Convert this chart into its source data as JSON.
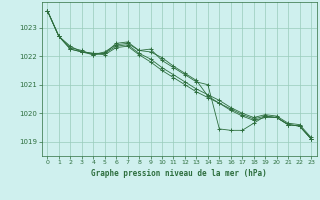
{
  "title": "Graphe pression niveau de la mer (hPa)",
  "background_color": "#cff0ee",
  "plot_bg_color": "#cff0ee",
  "grid_color": "#99ccbb",
  "line_color": "#2d6e3e",
  "ylim": [
    1018.5,
    1023.9
  ],
  "xlim": [
    -0.5,
    23.5
  ],
  "yticks": [
    1019,
    1020,
    1021,
    1022,
    1023
  ],
  "xticks": [
    0,
    1,
    2,
    3,
    4,
    5,
    6,
    7,
    8,
    9,
    10,
    11,
    12,
    13,
    14,
    15,
    16,
    17,
    18,
    19,
    20,
    21,
    22,
    23
  ],
  "series": [
    [
      1023.6,
      1022.7,
      1022.35,
      1022.15,
      1022.05,
      1022.1,
      1022.45,
      1022.5,
      1022.2,
      1022.25,
      1021.85,
      1021.6,
      1021.35,
      1021.1,
      1021.0,
      1019.45,
      1019.4,
      1019.4,
      1019.65,
      1019.9,
      1019.85,
      1019.6,
      1019.55,
      1019.1
    ],
    [
      1023.6,
      1022.7,
      1022.3,
      1022.2,
      1022.05,
      1022.15,
      1022.4,
      1022.45,
      1022.2,
      1022.15,
      1021.95,
      1021.65,
      1021.4,
      1021.15,
      1020.6,
      1020.35,
      1020.15,
      1019.95,
      1019.8,
      1019.9,
      1019.85,
      1019.6,
      1019.55,
      1019.1
    ],
    [
      1023.6,
      1022.7,
      1022.25,
      1022.15,
      1022.1,
      1022.1,
      1022.35,
      1022.4,
      1022.1,
      1021.9,
      1021.6,
      1021.35,
      1021.1,
      1020.85,
      1020.65,
      1020.45,
      1020.2,
      1020.0,
      1019.85,
      1019.95,
      1019.9,
      1019.65,
      1019.6,
      1019.15
    ],
    [
      1023.6,
      1022.7,
      1022.25,
      1022.15,
      1022.1,
      1022.05,
      1022.3,
      1022.35,
      1022.05,
      1021.8,
      1021.5,
      1021.25,
      1021.0,
      1020.75,
      1020.55,
      1020.35,
      1020.1,
      1019.9,
      1019.75,
      1019.85,
      1019.85,
      1019.6,
      1019.55,
      1019.1
    ]
  ]
}
